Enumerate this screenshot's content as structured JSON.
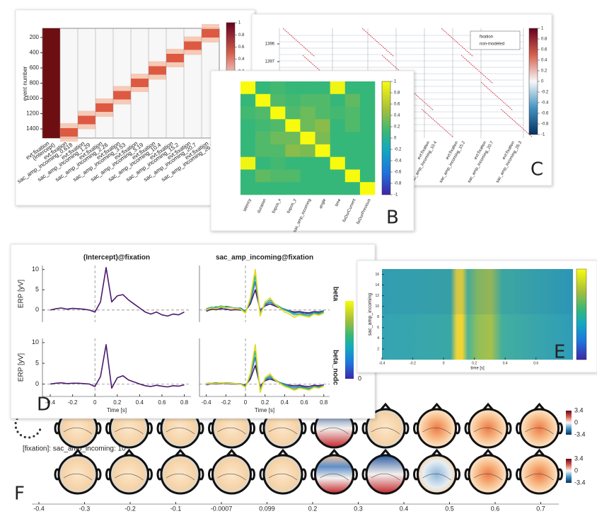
{
  "panels": {
    "A": {
      "letter": "A",
      "ylabel": "event number",
      "ylim": [
        80,
        1520
      ],
      "yticks": [
        200,
        400,
        600,
        800,
        1000,
        1200,
        1400
      ],
      "clim": [
        -1,
        1
      ],
      "cticks": [
        1,
        0.8,
        0.6,
        0.4,
        0.2,
        0,
        -0.2,
        -0.4,
        -0.6,
        -0.8,
        -1
      ],
      "column_prefix": "evt:fixation",
      "columns": [
        "(Intercept)",
        "sac_amp_incoming_0.618",
        "sac_amp_incoming_1.29",
        "sac_amp_incoming_2.26",
        "sac_amp_incoming_3.53",
        "sac_amp_incoming_5.19",
        "sac_amp_incoming_10.4",
        "sac_amp_incoming_15.2",
        "sac_amp_incoming_20.7",
        "sac_amp_incoming_26.3"
      ]
    },
    "B": {
      "letter": "B",
      "labels": [
        "latency",
        "duration",
        "fixpos_x",
        "fixpos_y",
        "sac_amp_incoming",
        "angle",
        "time",
        "fixDurCurrent",
        "fixDurPrevious"
      ],
      "matrix": [
        [
          1,
          0.1,
          0.15,
          0.1,
          0.1,
          0.1,
          0.95,
          0.1,
          0.1
        ],
        [
          0.1,
          1,
          0.2,
          0.15,
          0.2,
          0.2,
          0.1,
          0.25,
          0.1
        ],
        [
          0.15,
          0.2,
          1,
          0.2,
          0.3,
          0.2,
          0.15,
          0.2,
          0.1
        ],
        [
          0.1,
          0.15,
          0.2,
          1,
          0.3,
          0.4,
          0.1,
          0.2,
          0.1
        ],
        [
          0.1,
          0.2,
          0.3,
          0.3,
          1,
          0.35,
          0.1,
          0.1,
          0.1
        ],
        [
          0.1,
          0.2,
          0.2,
          0.4,
          0.35,
          1,
          0.1,
          0.1,
          0.1
        ],
        [
          0.95,
          0.1,
          0.15,
          0.1,
          0.1,
          0.1,
          1,
          0.1,
          0.1
        ],
        [
          0.1,
          0.25,
          0.2,
          0.2,
          0.1,
          0.1,
          0.1,
          1,
          0.1
        ],
        [
          0.1,
          0.1,
          0.1,
          0.1,
          0.1,
          0.1,
          0.1,
          0.1,
          1
        ]
      ],
      "clim": [
        -1,
        1
      ],
      "cticks": [
        1,
        0.8,
        0.6,
        0.4,
        0.2,
        0,
        -0.2,
        -0.4,
        -0.6,
        -0.8,
        -1
      ]
    },
    "C": {
      "letter": "C",
      "yticks": [
        1396,
        1397
      ],
      "legend": [
        "fixation",
        "non-modeled"
      ],
      "clim": [
        -1,
        1
      ],
      "cticks": [
        1,
        0.8,
        0.6,
        0.4,
        0.2,
        0,
        -0.2,
        -0.4,
        -0.6,
        -0.8,
        -1
      ],
      "column_prefix": "evt:fixation",
      "columns": [
        "sac_amp_incoming_10.4",
        "sac_amp_incoming_15.2",
        "sac_amp_incoming_20.7",
        "sac_amp_incoming_26.3"
      ]
    },
    "D": {
      "letter": "D",
      "titles": [
        "(Intercept)@fixation",
        "sac_amp_incoming@fixation"
      ],
      "ylabel": "ERP [yV]",
      "rows": [
        "beta",
        "beta_nodc"
      ],
      "xlabel": "Time [s]",
      "xlim": [
        -0.47,
        0.86
      ],
      "ylim": [
        -3,
        11
      ],
      "xticks": [
        -0.4,
        -0.2,
        0,
        0.2,
        0.4,
        0.6,
        0.8
      ],
      "yticks": [
        0,
        5,
        10
      ],
      "cticks": [
        0
      ],
      "x": [
        -0.4,
        -0.35,
        -0.3,
        -0.25,
        -0.2,
        -0.15,
        -0.1,
        -0.05,
        0,
        0.05,
        0.1,
        0.15,
        0.2,
        0.25,
        0.3,
        0.35,
        0.4,
        0.45,
        0.5,
        0.55,
        0.6,
        0.65,
        0.7,
        0.75,
        0.8
      ],
      "intercept": {
        "color": "#4a1a6e",
        "beta": [
          0,
          0.3,
          0.5,
          0.2,
          0.4,
          0.3,
          0.2,
          0,
          -0.5,
          2,
          10.5,
          2,
          3.5,
          3.8,
          2.5,
          1.5,
          0.5,
          -0.5,
          -1,
          -0.5,
          -1.2,
          -1.5,
          -1,
          -1.2,
          -0.5
        ],
        "beta_nodc": [
          0,
          0.2,
          0.3,
          0.1,
          0.2,
          0.2,
          0.1,
          0,
          -0.6,
          1.8,
          9.5,
          -1,
          1.5,
          2,
          1,
          0.5,
          0,
          -0.4,
          -0.6,
          -0.3,
          -0.5,
          -0.7,
          -0.4,
          -0.5,
          -0.2
        ]
      },
      "series": [
        {
          "color": "#4a1a6e",
          "beta": [
            -0.3,
            0.2,
            0.1,
            0.3,
            0.2,
            0,
            0.1,
            0,
            -0.2,
            1.5,
            5,
            0,
            1,
            1.5,
            1,
            0.5,
            0.2,
            -0.2,
            -0.5,
            -0.4,
            -0.6,
            -0.7,
            -0.4,
            -0.5,
            -0.2
          ],
          "beta_nodc": [
            -0.2,
            0.1,
            0,
            0.2,
            0.1,
            0,
            0,
            0,
            -0.3,
            1.2,
            4.5,
            -0.5,
            0.8,
            1.2,
            0.8,
            0.3,
            0,
            -0.3,
            -0.4,
            -0.3,
            -0.5,
            -0.6,
            -0.3,
            -0.4,
            -0.2
          ]
        },
        {
          "color": "#2b7bba",
          "beta": [
            0.2,
            0.3,
            0.8,
            0.5,
            0.9,
            0.7,
            0.4,
            0.5,
            -0.3,
            2,
            7,
            -0.5,
            1.2,
            2,
            1.2,
            0.7,
            0.2,
            -0.3,
            -0.8,
            -0.6,
            -0.9,
            -1,
            -0.6,
            -0.7,
            -0.3
          ],
          "beta_nodc": [
            0.1,
            0.2,
            0.3,
            0.2,
            0.3,
            0.2,
            0.1,
            0.1,
            -0.5,
            1.8,
            6.5,
            -1,
            1,
            1.6,
            1,
            0.4,
            0,
            -0.5,
            -0.8,
            -0.6,
            -0.8,
            -1,
            -0.6,
            -0.7,
            -0.3
          ]
        },
        {
          "color": "#2fb47c",
          "beta": [
            0.3,
            0.7,
            0.6,
            1,
            0.7,
            0.5,
            0.5,
            0.3,
            -0.5,
            2.5,
            8.5,
            -1,
            1.5,
            2.5,
            1.5,
            0.8,
            0,
            -0.5,
            -1.2,
            -1,
            -1.2,
            -1.4,
            -0.8,
            -1,
            -0.5
          ],
          "beta_nodc": [
            0.1,
            0.2,
            0.2,
            0.3,
            0.2,
            0.1,
            0.1,
            0,
            -0.7,
            2.2,
            8,
            -1.5,
            1.2,
            2,
            1.1,
            0.3,
            -0.3,
            -0.8,
            -1.2,
            -0.8,
            -1,
            -1.2,
            -0.7,
            -0.9,
            -0.4
          ]
        },
        {
          "color": "#e6d822",
          "beta": [
            0,
            0.5,
            0.3,
            0.8,
            0.5,
            0.6,
            0.3,
            0.2,
            -0.8,
            3,
            10,
            -1.5,
            2,
            3,
            1.5,
            0.5,
            -0.5,
            -1,
            -1.8,
            -1.2,
            -1.5,
            -1.8,
            -1,
            -1.3,
            -0.8
          ],
          "beta_nodc": [
            0,
            0.2,
            0.1,
            0.3,
            0.2,
            0.1,
            0.1,
            0,
            -0.8,
            2.5,
            9.5,
            -2,
            1.5,
            2.5,
            1,
            0.2,
            -0.6,
            -1,
            -1.5,
            -1,
            -1.2,
            -1.5,
            -0.8,
            -1,
            -0.5
          ]
        }
      ]
    },
    "E": {
      "letter": "E",
      "ylabel": "sac_amp_incoming",
      "xlabel": "time [s]",
      "xlim": [
        -0.4,
        0.84
      ],
      "ylim": [
        0,
        17
      ],
      "xticks": [
        -0.4,
        -0.2,
        0,
        0.2,
        0.4,
        0.6
      ],
      "yticks": [
        2,
        4,
        6,
        8,
        10,
        12,
        14,
        16
      ]
    },
    "F": {
      "letter": "F",
      "subtitle": "[fixation]: sac_amp_incoming: 10",
      "cticks": [
        3.4,
        0,
        -3.4
      ],
      "times": [
        -0.4,
        -0.3,
        -0.2,
        -0.1,
        -0.0007,
        0.099,
        0.2,
        0.3,
        0.4,
        0.5,
        0.6,
        0.7
      ]
    }
  }
}
